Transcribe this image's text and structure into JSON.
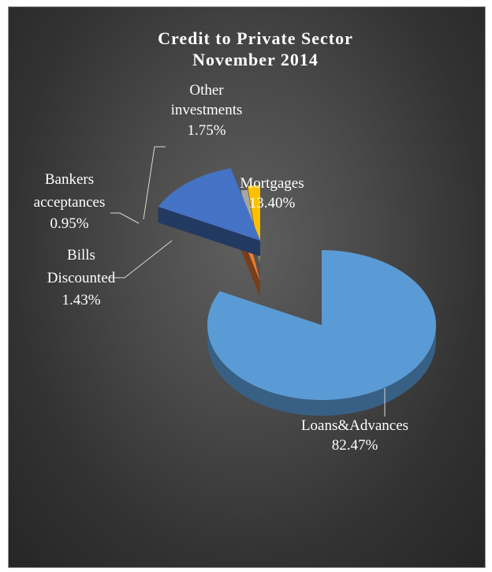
{
  "chart_data": {
    "type": "pie",
    "title_line1": "Credit to Private Sector",
    "title_line2": "November 2014",
    "slices": [
      {
        "name": "Loans&Advances",
        "value": 82.47,
        "pct": "82.47%",
        "color": "#5b9bd5"
      },
      {
        "name": "Mortgages",
        "value": 13.4,
        "pct": "13.40%",
        "color": "#4472c4"
      },
      {
        "name": "Bills Discounted",
        "value": 1.43,
        "pct": "1.43%",
        "color": "#ed7d31"
      },
      {
        "name": "Bankers acceptances",
        "value": 0.95,
        "pct": "0.95%",
        "color": "#a5a5a5"
      },
      {
        "name": "Other investments",
        "value": 1.75,
        "pct": "1.75%",
        "color": "#ffc000"
      }
    ],
    "labels": {
      "loans": {
        "line1": "Loans&Advances",
        "line2": "82.47%"
      },
      "mortgages": {
        "line1": "Mortgages",
        "line2": "13.40%"
      },
      "bills": {
        "line1": "Bills",
        "line2": "Discounted",
        "line3": "1.43%"
      },
      "bankers": {
        "line1": "Bankers",
        "line2": "acceptances",
        "line3": "0.95%"
      },
      "other": {
        "line1": "Other",
        "line2": "investments",
        "line3": "1.75%"
      }
    }
  }
}
